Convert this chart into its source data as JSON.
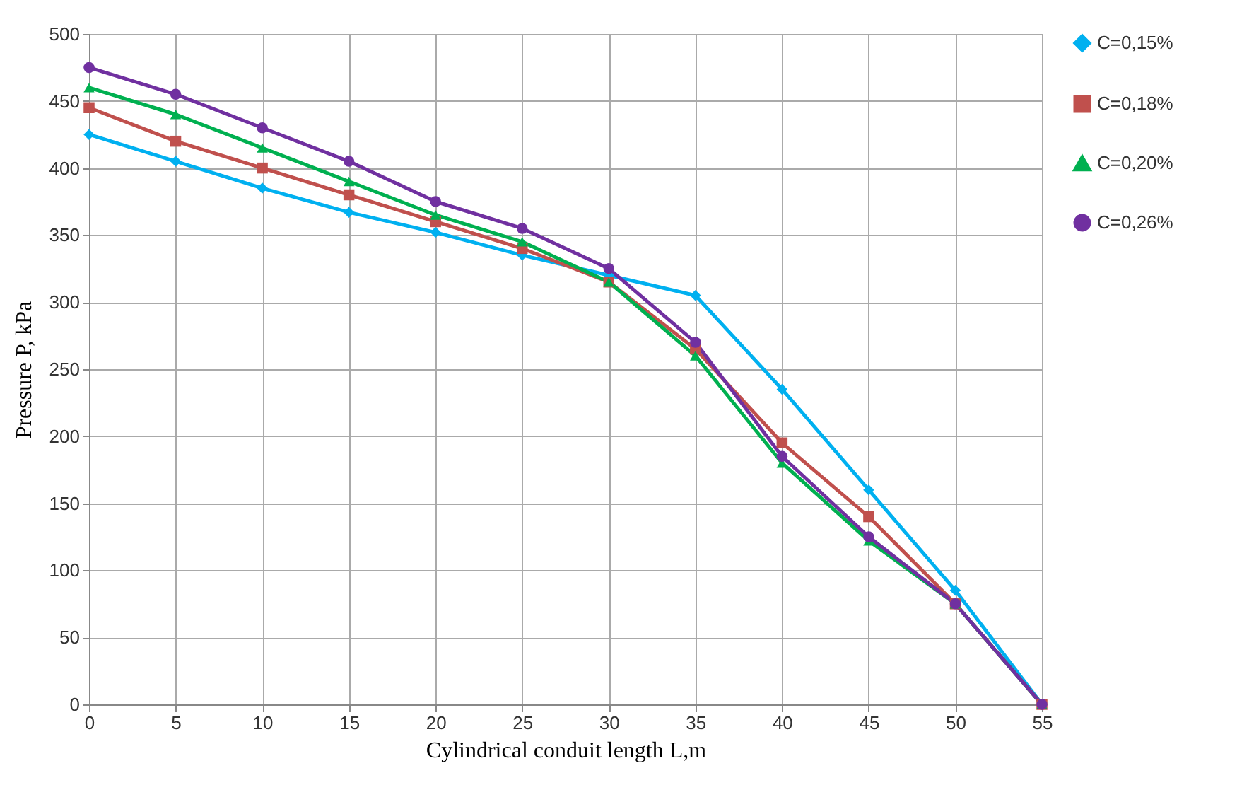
{
  "chart_data": {
    "type": "line",
    "xlabel": "Cylindrical conduit length L,m",
    "ylabel": "Pressure P, kPa",
    "x": [
      0,
      5,
      10,
      15,
      20,
      25,
      30,
      35,
      40,
      45,
      50,
      55
    ],
    "xlim": [
      0,
      55
    ],
    "xticks": [
      0,
      5,
      10,
      15,
      20,
      25,
      30,
      35,
      40,
      45,
      50,
      55
    ],
    "ylim": [
      0,
      500
    ],
    "yticks": [
      0,
      50,
      100,
      150,
      200,
      250,
      300,
      350,
      400,
      450,
      500
    ],
    "grid": true,
    "legend": "right",
    "series": [
      {
        "name": "C=0,15%",
        "color": "#00b0f0",
        "marker": "diamond",
        "values": [
          425,
          405,
          385,
          367,
          352,
          335,
          320,
          305,
          235,
          160,
          85,
          0
        ]
      },
      {
        "name": "C=0,18%",
        "color": "#c0504d",
        "marker": "square",
        "values": [
          445,
          420,
          400,
          380,
          360,
          340,
          315,
          265,
          195,
          140,
          75,
          0
        ]
      },
      {
        "name": "C=0,20%",
        "color": "#00b050",
        "marker": "triangle",
        "values": [
          460,
          440,
          415,
          390,
          365,
          345,
          315,
          260,
          180,
          122,
          75,
          0
        ]
      },
      {
        "name": "C=0,26%",
        "color": "#7030a0",
        "marker": "circle",
        "values": [
          475,
          455,
          430,
          405,
          375,
          355,
          325,
          270,
          185,
          125,
          75,
          0
        ]
      }
    ]
  }
}
